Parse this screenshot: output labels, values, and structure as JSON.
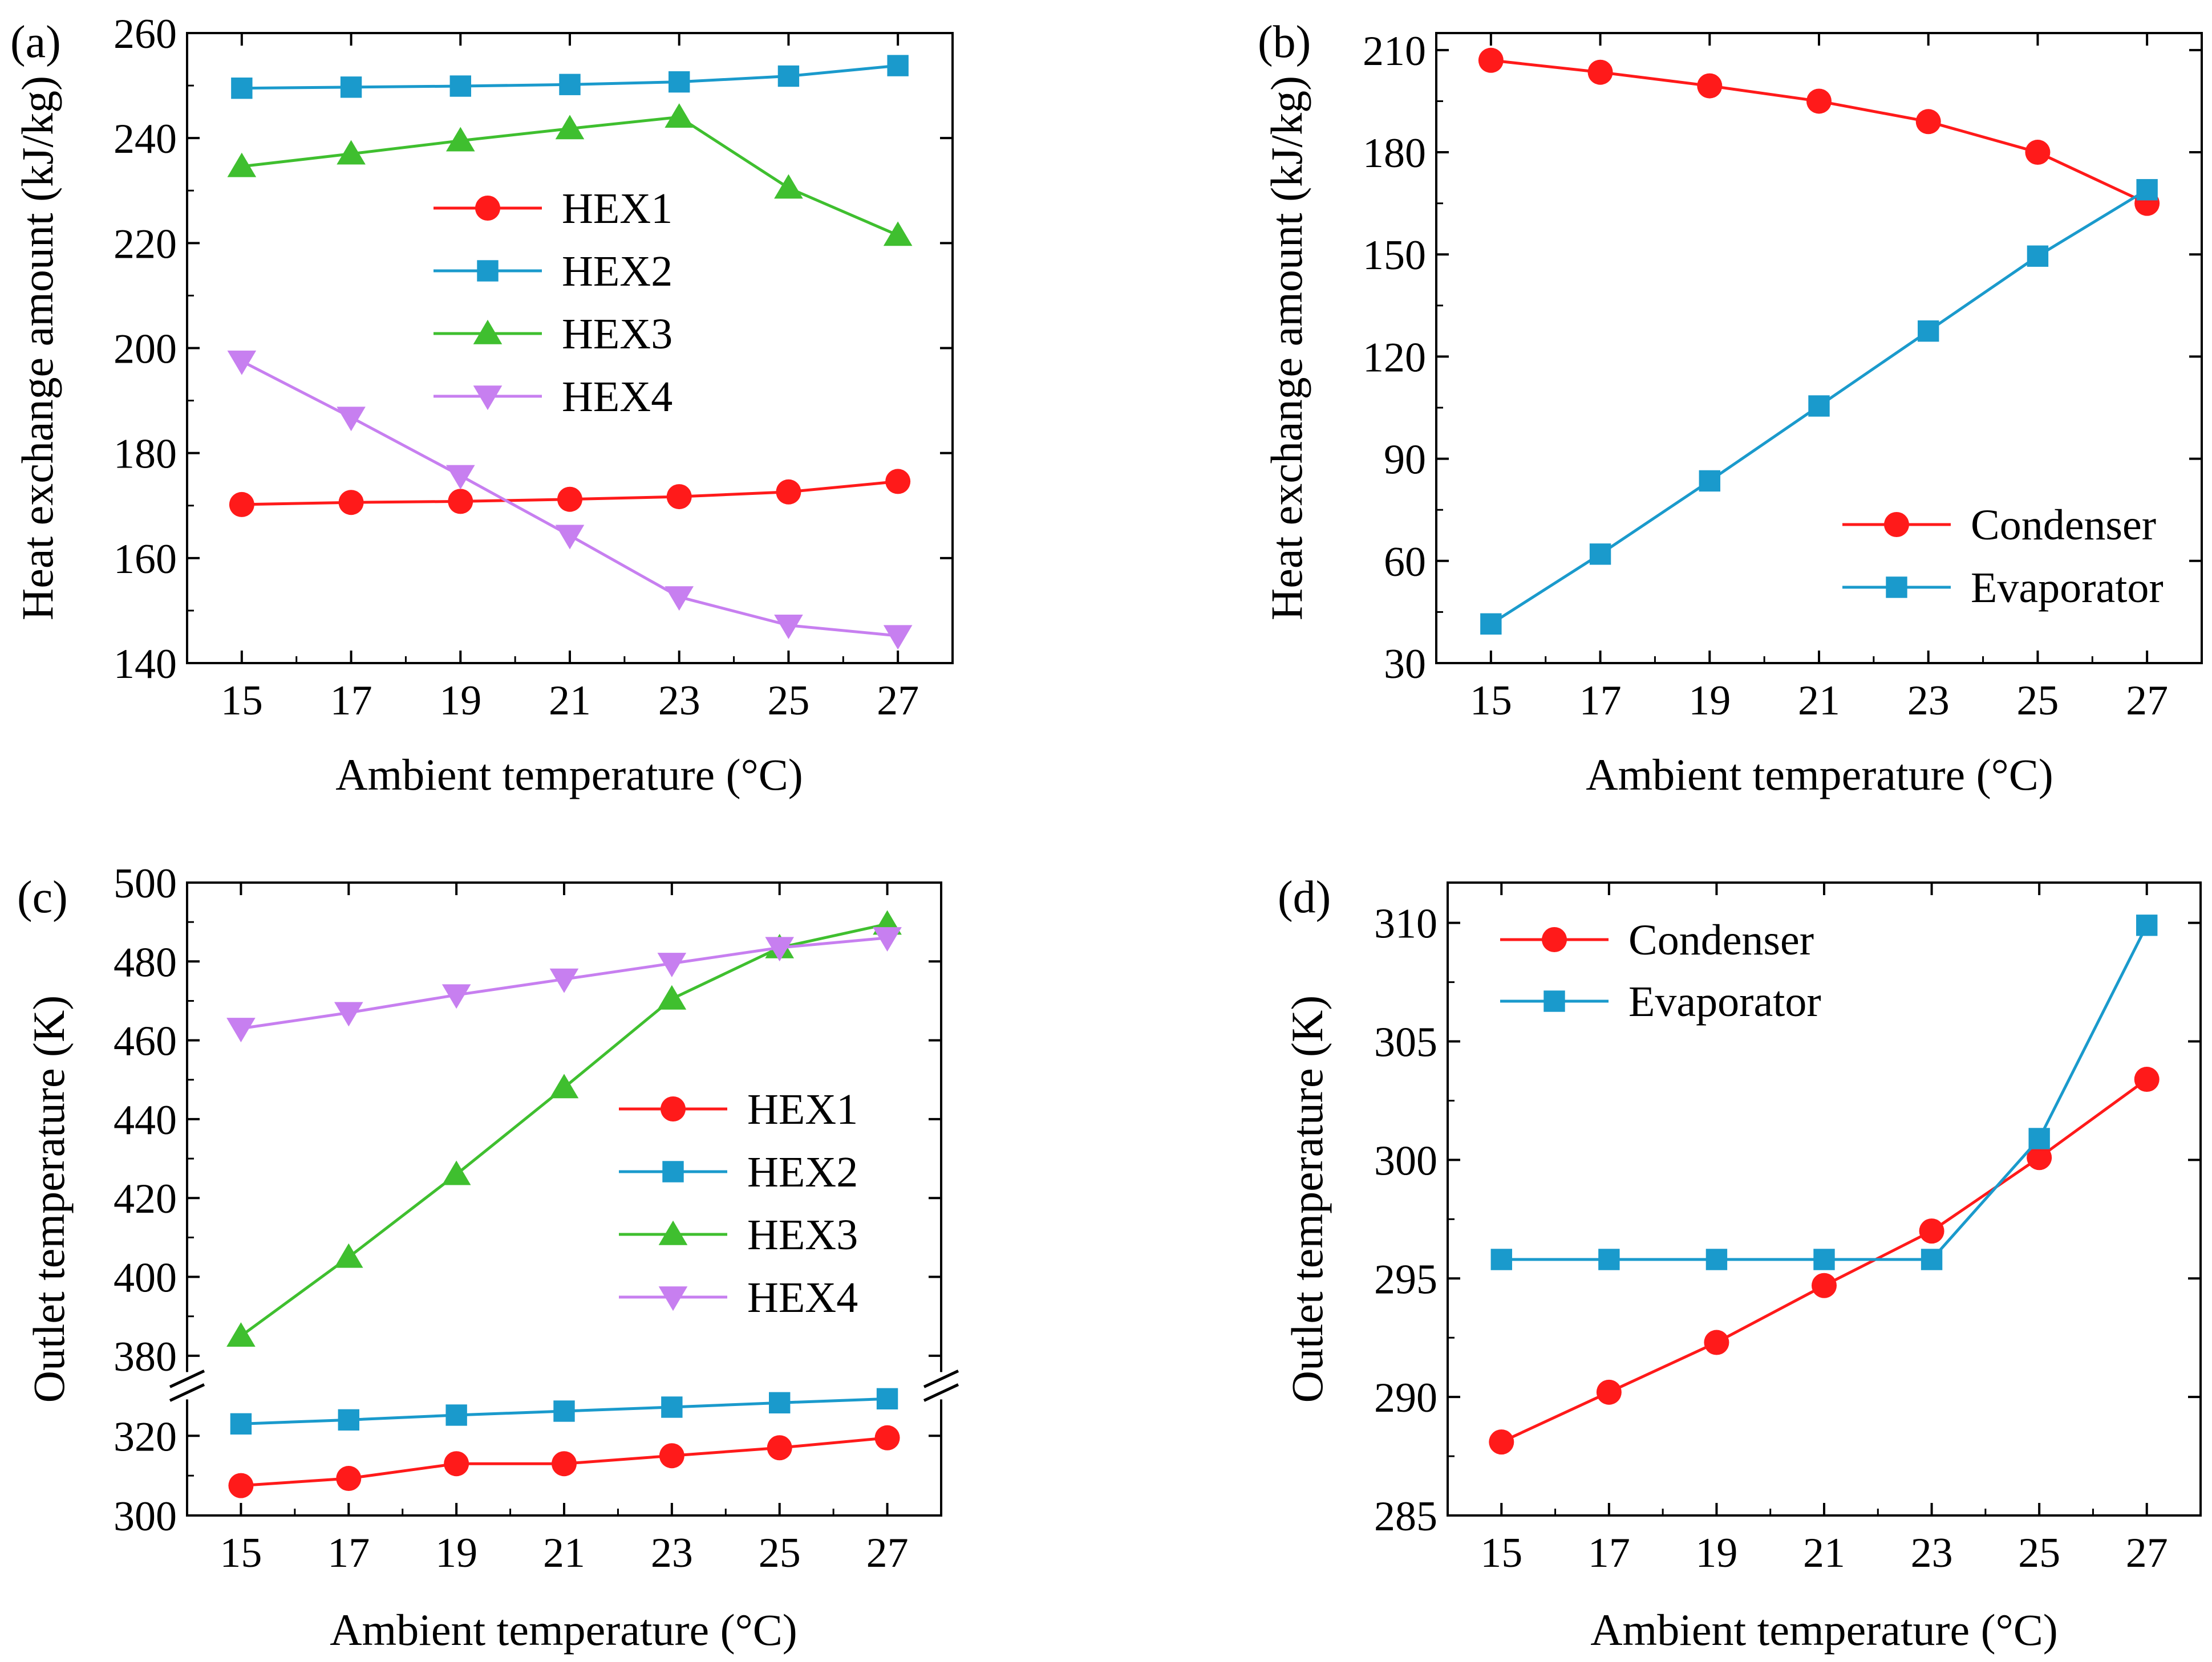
{
  "chart_data": [
    {
      "panel": "(a)",
      "type": "line",
      "xlabel": "Ambient temperature (°C)",
      "ylabel": "Heat exchange amount (kJ/kg)",
      "x": [
        15,
        17,
        19,
        21,
        23,
        25,
        27
      ],
      "xlim": [
        14,
        28
      ],
      "ylim": [
        140,
        260
      ],
      "yticks": [
        140,
        160,
        180,
        200,
        220,
        240,
        260
      ],
      "legend_position": "center",
      "series": [
        {
          "name": "HEX1",
          "color": "#ff1a1a",
          "marker": "circle",
          "values": [
            170.2,
            170.6,
            170.8,
            171.2,
            171.7,
            172.6,
            174.6
          ]
        },
        {
          "name": "HEX2",
          "color": "#1a9acc",
          "marker": "square",
          "values": [
            249.5,
            249.7,
            249.9,
            250.2,
            250.7,
            251.8,
            253.8
          ]
        },
        {
          "name": "HEX3",
          "color": "#3fbf2f",
          "marker": "triangle-up",
          "values": [
            234.6,
            237.0,
            239.5,
            241.8,
            244.0,
            230.5,
            221.5
          ]
        },
        {
          "name": "HEX4",
          "color": "#c77ff0",
          "marker": "triangle-down",
          "values": [
            197.5,
            186.8,
            175.7,
            164.3,
            152.6,
            147.2,
            145.2
          ]
        }
      ]
    },
    {
      "panel": "(b)",
      "type": "line",
      "xlabel": "Ambient temperature (°C)",
      "ylabel": "Heat exchange amount (kJ/kg)",
      "x": [
        15,
        17,
        19,
        21,
        23,
        25,
        27
      ],
      "xlim": [
        14,
        28
      ],
      "ylim": [
        30,
        215
      ],
      "yticks": [
        30,
        60,
        90,
        120,
        150,
        180,
        210
      ],
      "legend_position": "bottom-right",
      "series": [
        {
          "name": "Condenser",
          "color": "#ff1a1a",
          "marker": "circle",
          "values": [
            207.0,
            203.5,
            199.5,
            195.0,
            189.0,
            180.0,
            165.0
          ]
        },
        {
          "name": "Evaporator",
          "color": "#1a9acc",
          "marker": "square",
          "values": [
            41.5,
            62.0,
            83.5,
            105.5,
            127.5,
            149.5,
            169.0
          ]
        }
      ]
    },
    {
      "panel": "(c)",
      "type": "line",
      "xlabel": "Ambient temperature (°C)",
      "ylabel": "Outlet temperature (K)",
      "x": [
        15,
        17,
        19,
        21,
        23,
        25,
        27
      ],
      "xlim": [
        14,
        28
      ],
      "broken_axis": {
        "lower_range": [
          300,
          330
        ],
        "upper_range": [
          375,
          500
        ]
      },
      "yticks": [
        300,
        320,
        380,
        400,
        420,
        440,
        460,
        480,
        500
      ],
      "legend_position": "center-right",
      "series": [
        {
          "name": "HEX1",
          "color": "#ff1a1a",
          "marker": "circle",
          "values": [
            307.5,
            309.3,
            313.0,
            313.0,
            315.0,
            317.0,
            319.5
          ]
        },
        {
          "name": "HEX2",
          "color": "#1a9acc",
          "marker": "square",
          "values": [
            323.0,
            324.0,
            325.2,
            326.2,
            327.2,
            328.3,
            329.3
          ]
        },
        {
          "name": "HEX3",
          "color": "#3fbf2f",
          "marker": "triangle-up",
          "values": [
            385.0,
            405.0,
            426.0,
            448.0,
            470.5,
            483.5,
            489.5
          ]
        },
        {
          "name": "HEX4",
          "color": "#c77ff0",
          "marker": "triangle-down",
          "values": [
            463.0,
            467.0,
            471.5,
            475.5,
            479.5,
            483.5,
            486.0
          ]
        }
      ]
    },
    {
      "panel": "(d)",
      "type": "line",
      "xlabel": "Ambient temperature (°C)",
      "ylabel": "Outlet temperature (K)",
      "x": [
        15,
        17,
        19,
        21,
        23,
        25,
        27
      ],
      "xlim": [
        14,
        28
      ],
      "ylim": [
        285,
        311.7
      ],
      "yticks": [
        285,
        290,
        295,
        300,
        305,
        310
      ],
      "legend_position": "top-left",
      "series": [
        {
          "name": "Condenser",
          "color": "#ff1a1a",
          "marker": "circle",
          "values": [
            288.1,
            290.2,
            292.3,
            294.7,
            297.0,
            300.1,
            303.4
          ]
        },
        {
          "name": "Evaporator",
          "color": "#1a9acc",
          "marker": "square",
          "values": [
            295.8,
            295.8,
            295.8,
            295.8,
            295.8,
            300.9,
            309.9
          ]
        }
      ]
    }
  ]
}
